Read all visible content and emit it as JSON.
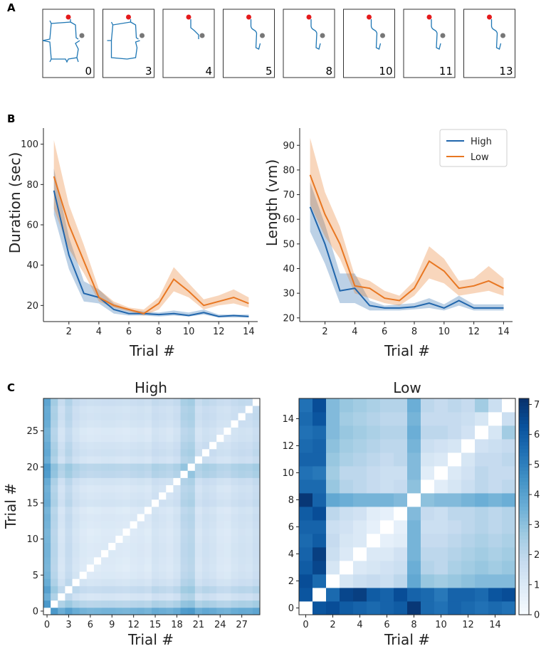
{
  "panel_labels": [
    "A",
    "B",
    "C"
  ],
  "panel_a": {
    "trial_numbers": [
      "0",
      "3",
      "4",
      "5",
      "8",
      "10",
      "11",
      "13"
    ],
    "start_marker_color": "#e41a1c",
    "goal_marker_color": "#777777",
    "path_color": "#1f77b4"
  },
  "colors": {
    "high": "#2166ac",
    "low": "#e87722"
  },
  "chart_data": [
    {
      "type": "line",
      "id": "duration",
      "title": "",
      "xlabel": "Trial #",
      "ylabel": "Duration (sec)",
      "x": [
        1,
        2,
        3,
        4,
        5,
        6,
        7,
        8,
        9,
        10,
        11,
        12,
        13,
        14
      ],
      "xticks": [
        2,
        4,
        6,
        8,
        10,
        12,
        14
      ],
      "yticks": [
        20,
        40,
        60,
        80,
        100
      ],
      "xlim": [
        0.3,
        14.6
      ],
      "ylim": [
        12,
        108
      ],
      "series": [
        {
          "name": "High",
          "values": [
            77,
            45,
            26,
            24,
            18,
            16,
            16,
            15.5,
            16,
            15,
            16.5,
            14.5,
            15,
            14.5
          ],
          "lower": [
            65,
            38,
            22,
            21,
            16,
            15,
            15,
            14.5,
            15,
            14.5,
            15.5,
            14,
            14,
            14
          ],
          "upper": [
            88,
            54,
            32,
            28,
            21,
            18,
            17,
            16.5,
            17.5,
            16.5,
            18,
            15.5,
            15.5,
            15.5
          ]
        },
        {
          "name": "Low",
          "values": [
            84,
            60,
            42,
            24,
            20,
            18,
            16,
            21,
            33,
            27,
            20,
            22,
            24,
            21
          ],
          "lower": [
            68,
            48,
            36,
            22,
            19,
            17,
            15,
            18,
            27,
            24,
            18,
            20,
            21,
            19
          ],
          "upper": [
            102,
            70,
            50,
            28,
            22,
            19,
            18,
            24,
            39,
            31,
            23,
            25,
            28,
            24
          ]
        }
      ],
      "legend": ""
    },
    {
      "type": "line",
      "id": "length",
      "title": "",
      "xlabel": "Trial #",
      "ylabel": "Length (vm)",
      "x": [
        1,
        2,
        3,
        4,
        5,
        6,
        7,
        8,
        9,
        10,
        11,
        12,
        13,
        14
      ],
      "xticks": [
        2,
        4,
        6,
        8,
        10,
        12,
        14
      ],
      "yticks": [
        20,
        30,
        40,
        50,
        60,
        70,
        80,
        90
      ],
      "xlim": [
        0.3,
        14.6
      ],
      "ylim": [
        18.5,
        97
      ],
      "series": [
        {
          "name": "High",
          "values": [
            65,
            50,
            31,
            32,
            25,
            24,
            24,
            24.5,
            26,
            24,
            27,
            24,
            24,
            24
          ],
          "lower": [
            55,
            42,
            26,
            26,
            23,
            23,
            23,
            23.5,
            24,
            23,
            25,
            23,
            23,
            23
          ],
          "upper": [
            75,
            58,
            38,
            38,
            27,
            25,
            25.5,
            26,
            28,
            25.5,
            29,
            25.5,
            25.5,
            25.5
          ]
        },
        {
          "name": "Low",
          "values": [
            78,
            62,
            50,
            33,
            32,
            28,
            27,
            32,
            43,
            39,
            32,
            33,
            35,
            32
          ],
          "lower": [
            66,
            53,
            44,
            30,
            28,
            26,
            25,
            29,
            36,
            34,
            29,
            30,
            31,
            29
          ],
          "upper": [
            93,
            71,
            57,
            37,
            35,
            31,
            29,
            35,
            49,
            44,
            35,
            36,
            41,
            36
          ]
        }
      ],
      "legend": "top-right",
      "legend_entries": [
        "High",
        "Low"
      ]
    },
    {
      "type": "heatmap",
      "id": "high_matrix",
      "title": "High",
      "xlabel": "Trial #",
      "ylabel": "Trial #",
      "n": 30,
      "xticks": [
        0,
        3,
        6,
        9,
        12,
        15,
        18,
        21,
        24,
        27
      ],
      "yticks": [
        0,
        5,
        10,
        15,
        20,
        25
      ],
      "row_strength": [
        4.6,
        2.6,
        1.2,
        2.1,
        1.3,
        0.9,
        0.7,
        0.8,
        0.9,
        0.9,
        0.8,
        0.7,
        0.9,
        1.0,
        0.8,
        1.4,
        1.2,
        1.0,
        1.4,
        2.4,
        2.6,
        1.2,
        1.6,
        1.4,
        1.0,
        0.9,
        1.3,
        1.5,
        1.4,
        1.8
      ],
      "colormap": "Blues",
      "vmin": 0,
      "vmax": 7.2
    },
    {
      "type": "heatmap",
      "id": "low_matrix",
      "title": "Low",
      "xlabel": "Trial #",
      "ylabel": "",
      "n": 16,
      "xticks": [
        0,
        2,
        4,
        6,
        8,
        10,
        12,
        14
      ],
      "yticks": [
        0,
        2,
        4,
        6,
        8,
        10,
        12,
        14
      ],
      "matrix": [
        [
          0,
          6.2,
          6.4,
          6.0,
          5.8,
          5.6,
          5.8,
          6.0,
          7.0,
          5.6,
          5.4,
          5.8,
          5.6,
          5.4,
          5.6,
          5.4
        ],
        [
          6.2,
          0,
          5.6,
          6.6,
          6.8,
          6.0,
          5.8,
          6.4,
          5.8,
          5.6,
          5.2,
          5.8,
          5.8,
          5.6,
          6.2,
          6.4
        ],
        [
          6.4,
          5.6,
          0,
          1.2,
          1.6,
          1.8,
          1.6,
          2.0,
          3.8,
          2.8,
          2.6,
          2.8,
          3.0,
          3.2,
          3.2,
          3.2
        ],
        [
          6.0,
          6.6,
          1.2,
          0,
          1.0,
          1.2,
          1.4,
          1.6,
          3.6,
          2.2,
          2.0,
          2.4,
          2.6,
          2.8,
          2.6,
          2.8
        ],
        [
          5.8,
          6.8,
          1.6,
          1.0,
          0,
          1.0,
          1.0,
          1.4,
          3.4,
          2.0,
          2.0,
          2.2,
          2.4,
          2.6,
          2.4,
          2.6
        ],
        [
          5.6,
          6.0,
          1.8,
          1.2,
          1.0,
          0,
          0.6,
          0.8,
          3.4,
          1.8,
          1.8,
          2.0,
          2.2,
          2.4,
          2.2,
          2.4
        ],
        [
          5.8,
          5.8,
          1.6,
          1.4,
          1.0,
          0.6,
          0,
          0.6,
          3.4,
          1.6,
          1.6,
          1.8,
          2.0,
          2.2,
          2.0,
          2.2
        ],
        [
          6.0,
          6.4,
          2.0,
          1.6,
          1.4,
          0.8,
          0.6,
          0,
          3.2,
          1.8,
          1.6,
          2.0,
          2.0,
          2.2,
          2.0,
          2.2
        ],
        [
          7.0,
          5.8,
          3.8,
          3.6,
          3.4,
          3.4,
          3.4,
          3.2,
          0,
          3.0,
          3.2,
          3.2,
          3.4,
          3.6,
          3.4,
          3.6
        ],
        [
          5.6,
          5.6,
          2.8,
          2.2,
          2.0,
          1.8,
          1.6,
          1.8,
          3.0,
          0,
          0.8,
          1.2,
          1.6,
          2.0,
          1.8,
          2.0
        ],
        [
          5.4,
          5.2,
          2.6,
          2.0,
          2.0,
          1.8,
          1.6,
          1.6,
          3.2,
          0.8,
          0,
          1.0,
          1.4,
          2.0,
          1.8,
          1.8
        ],
        [
          5.8,
          5.8,
          2.8,
          2.4,
          2.2,
          2.0,
          1.8,
          2.0,
          3.2,
          1.2,
          1.0,
          0,
          1.2,
          1.8,
          1.8,
          2.0
        ],
        [
          5.6,
          5.8,
          3.0,
          2.6,
          2.4,
          2.2,
          2.0,
          2.0,
          3.4,
          1.6,
          1.4,
          1.2,
          0,
          1.4,
          1.6,
          1.8
        ],
        [
          5.4,
          5.6,
          3.2,
          2.8,
          2.6,
          2.4,
          2.2,
          2.2,
          3.6,
          2.0,
          2.0,
          1.8,
          1.4,
          0,
          1.2,
          2.6
        ],
        [
          5.6,
          6.2,
          3.2,
          2.6,
          2.4,
          2.2,
          2.0,
          2.0,
          3.4,
          1.8,
          1.8,
          1.8,
          1.6,
          1.2,
          0,
          1.6
        ],
        [
          5.4,
          6.4,
          3.2,
          2.8,
          2.6,
          2.4,
          2.2,
          2.2,
          3.6,
          2.0,
          1.8,
          2.0,
          1.8,
          2.6,
          1.6,
          0
        ]
      ],
      "colormap": "Blues",
      "vmin": 0,
      "vmax": 7.2,
      "colorbar_ticks": [
        0,
        1,
        2,
        3,
        4,
        5,
        6,
        7
      ]
    }
  ]
}
